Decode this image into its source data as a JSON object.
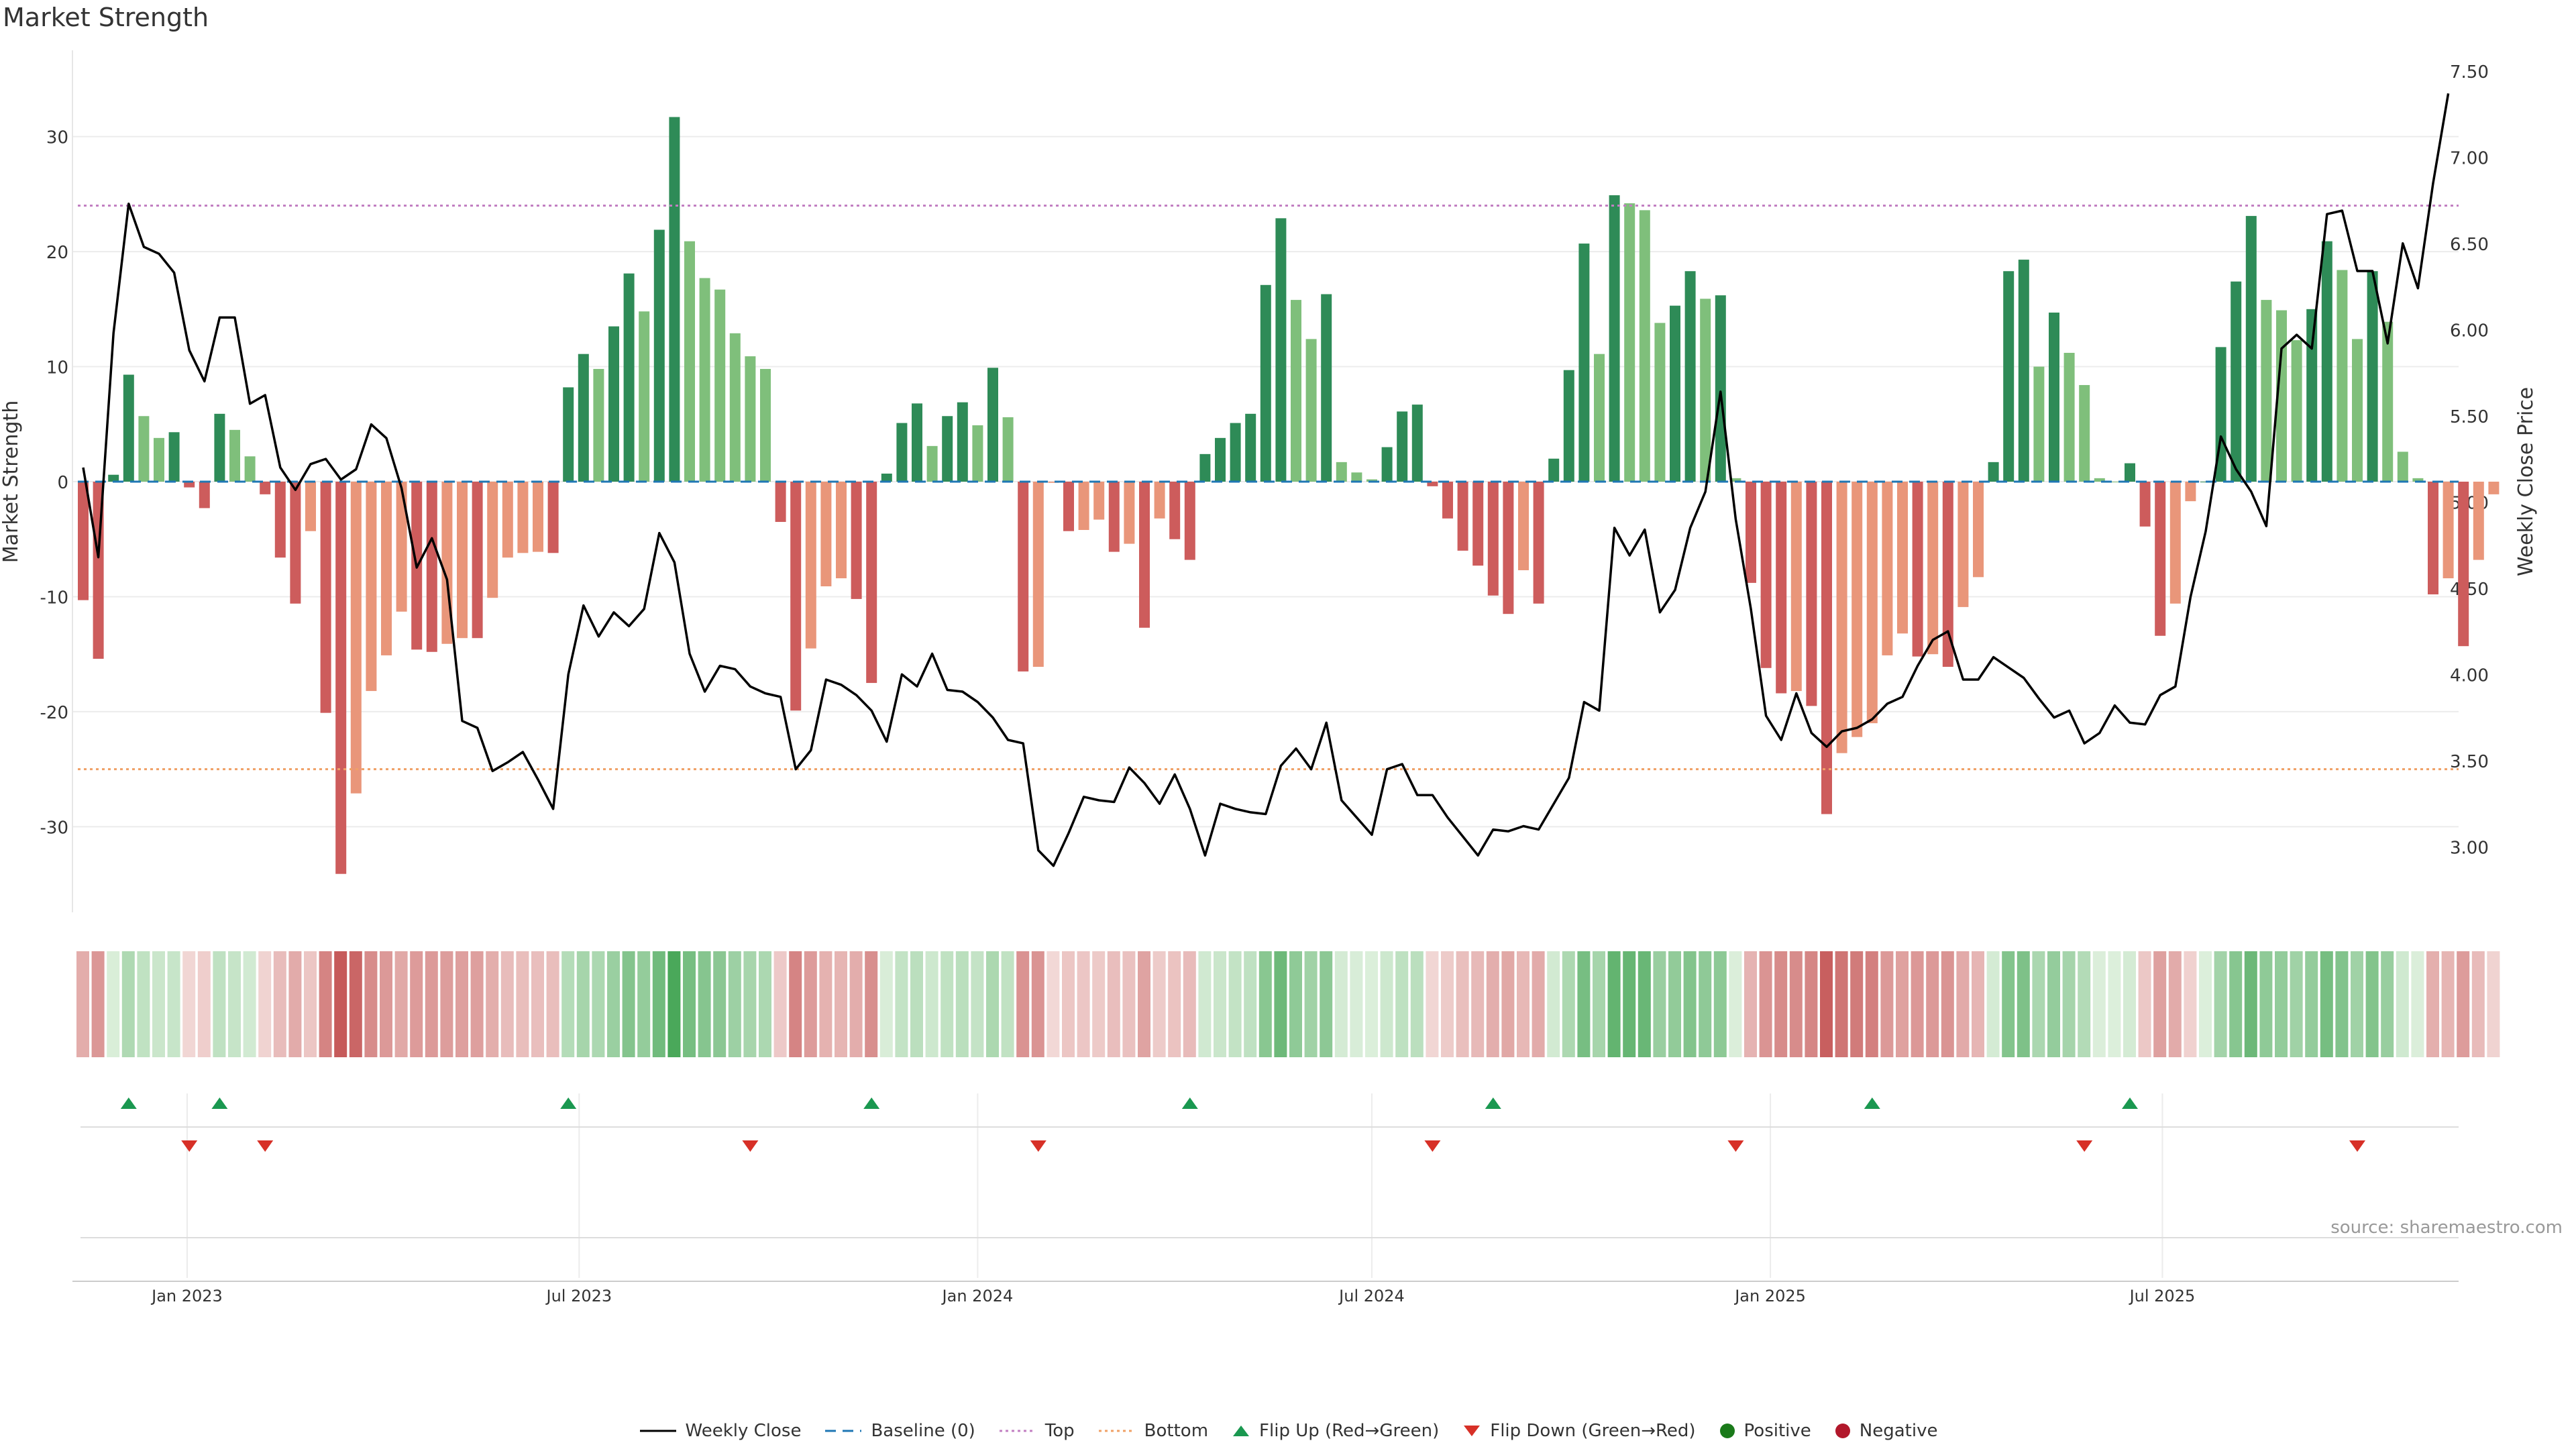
{
  "title": "Market Strength",
  "source": "source: sharemaestro.com",
  "colors": {
    "pos_dark": "#2e8b57",
    "pos_light": "#7fbf7b",
    "neg_dark": "#cd5c5c",
    "neg_light": "#e9967a",
    "price": "#000000",
    "baseline": "#1f77b4",
    "top": "#c27fc2",
    "bottom": "#f0a066",
    "flip_up": "#1a9850",
    "flip_down": "#d73027"
  },
  "legend": [
    {
      "key": "weekly_close",
      "label": "Weekly Close"
    },
    {
      "key": "baseline",
      "label": "Baseline (0)"
    },
    {
      "key": "top",
      "label": "Top"
    },
    {
      "key": "bottom",
      "label": "Bottom"
    },
    {
      "key": "flip_up",
      "label": "Flip Up (Red→Green)"
    },
    {
      "key": "flip_down",
      "label": "Flip Down (Green→Red)"
    },
    {
      "key": "positive",
      "label": "Positive"
    },
    {
      "key": "negative",
      "label": "Negative"
    }
  ],
  "chart_data": {
    "type": "bar",
    "title": "Market Strength",
    "ylabel": "Market Strength",
    "y2label": "Weekly Close Price",
    "ylim": [
      -36.5,
      37.5
    ],
    "y_ticks": [
      30,
      20,
      10,
      0,
      -10,
      -20,
      -30
    ],
    "y2lim": [
      2.62,
      7.62
    ],
    "y2_ticks": [
      "7.50",
      "7.00",
      "6.50",
      "6.00",
      "5.50",
      "5.00",
      "4.50",
      "4.00",
      "3.50",
      "3.00"
    ],
    "top_level": 24,
    "bottom_level": -25,
    "x_start": "2022-11-14",
    "x_ticks": [
      {
        "date": "2023-01-01",
        "label": "Jan 2023"
      },
      {
        "date": "2023-07-01",
        "label": "Jul 2023"
      },
      {
        "date": "2024-01-01",
        "label": "Jan 2024"
      },
      {
        "date": "2024-07-01",
        "label": "Jul 2024"
      },
      {
        "date": "2025-01-01",
        "label": "Jan 2025"
      },
      {
        "date": "2025-07-01",
        "label": "Jul 2025"
      }
    ],
    "strength": [
      -10.3,
      -15.4,
      0.6,
      9.3,
      5.7,
      3.8,
      4.3,
      -0.5,
      -2.3,
      5.9,
      4.5,
      2.2,
      -1.1,
      -6.6,
      -10.6,
      -4.3,
      -20.1,
      -34.1,
      -27.1,
      -18.2,
      -15.1,
      -11.3,
      -14.6,
      -14.8,
      -14.1,
      -13.6,
      -13.6,
      -10.1,
      -6.6,
      -6.2,
      -6.1,
      -6.2,
      8.2,
      11.1,
      9.8,
      13.5,
      18.1,
      14.8,
      21.9,
      31.7,
      20.9,
      17.7,
      16.7,
      12.9,
      10.9,
      9.8,
      -3.5,
      -19.9,
      -14.5,
      -9.1,
      -8.4,
      -10.2,
      -17.5,
      0.7,
      5.1,
      6.8,
      3.1,
      5.7,
      6.9,
      4.9,
      9.9,
      5.6,
      -16.5,
      -16.1,
      -0.1,
      -4.3,
      -4.2,
      -3.3,
      -6.1,
      -5.4,
      -12.7,
      -3.2,
      -5.0,
      -6.8,
      2.4,
      3.8,
      5.1,
      5.9,
      17.1,
      22.9,
      15.8,
      12.4,
      16.3,
      1.7,
      0.8,
      0.2,
      3.0,
      6.1,
      6.7,
      -0.4,
      -3.2,
      -6.0,
      -7.3,
      -9.9,
      -11.5,
      -7.7,
      -10.6,
      2.0,
      9.7,
      20.7,
      11.1,
      24.9,
      24.2,
      23.6,
      13.8,
      15.3,
      18.3,
      15.9,
      16.2,
      0.3,
      -8.8,
      -16.2,
      -18.4,
      -18.2,
      -19.5,
      -28.9,
      -23.6,
      -22.2,
      -21.0,
      -15.1,
      -13.2,
      -15.2,
      -15.0,
      -16.1,
      -10.9,
      -8.3,
      1.7,
      18.3,
      19.3,
      10.0,
      14.7,
      11.2,
      8.4,
      0.3,
      0.0,
      1.6,
      -3.9,
      -13.4,
      -10.6,
      -1.7,
      0.0,
      11.7,
      17.4,
      23.1,
      15.8,
      14.9,
      12.3,
      15.0,
      20.9,
      18.4,
      12.4,
      18.3,
      13.9,
      2.6,
      0.3,
      -9.8,
      -8.4,
      -14.3,
      -6.8,
      -1.1
    ],
    "close": [
      5.2,
      4.68,
      5.98,
      6.73,
      6.48,
      6.44,
      6.33,
      5.88,
      5.7,
      6.07,
      6.07,
      5.57,
      5.62,
      5.2,
      5.07,
      5.22,
      5.25,
      5.13,
      5.19,
      5.45,
      5.37,
      5.08,
      4.62,
      4.79,
      4.55,
      3.73,
      3.69,
      3.44,
      3.49,
      3.55,
      3.39,
      3.22,
      4.0,
      4.4,
      4.22,
      4.36,
      4.28,
      4.38,
      4.82,
      4.65,
      4.12,
      3.9,
      4.05,
      4.03,
      3.93,
      3.89,
      3.87,
      3.45,
      3.56,
      3.97,
      3.94,
      3.88,
      3.79,
      3.61,
      4.0,
      3.93,
      4.12,
      3.91,
      3.9,
      3.84,
      3.75,
      3.62,
      3.6,
      2.98,
      2.89,
      3.08,
      3.29,
      3.27,
      3.26,
      3.46,
      3.37,
      3.25,
      3.42,
      3.22,
      2.95,
      3.25,
      3.22,
      3.2,
      3.19,
      3.47,
      3.57,
      3.45,
      3.72,
      3.27,
      3.17,
      3.07,
      3.45,
      3.48,
      3.3,
      3.3,
      3.17,
      3.06,
      2.95,
      3.1,
      3.09,
      3.12,
      3.1,
      3.25,
      3.4,
      3.84,
      3.79,
      4.85,
      4.69,
      4.84,
      4.36,
      4.49,
      4.85,
      5.06,
      5.64,
      4.9,
      4.38,
      3.76,
      3.62,
      3.89,
      3.66,
      3.58,
      3.67,
      3.69,
      3.74,
      3.83,
      3.87,
      4.05,
      4.2,
      4.25,
      3.97,
      3.97,
      4.1,
      4.04,
      3.98,
      3.86,
      3.75,
      3.79,
      3.6,
      3.66,
      3.82,
      3.72,
      3.71,
      3.88,
      3.93,
      4.45,
      4.83,
      5.38,
      5.19,
      5.06,
      4.86,
      5.89,
      5.97,
      5.89,
      6.67,
      6.69,
      6.34,
      6.34,
      5.92,
      6.5,
      6.24,
      6.85,
      7.37
    ],
    "flip_up_dates": [
      "2022-12-05",
      "2023-01-16",
      "2023-06-26",
      "2023-11-13",
      "2024-04-08",
      "2024-08-26",
      "2025-02-17",
      "2025-06-16"
    ],
    "flip_down_dates": [
      "2023-01-02",
      "2023-02-06",
      "2023-09-18",
      "2024-01-29",
      "2024-07-29",
      "2024-12-16",
      "2025-05-26",
      "2025-09-29"
    ]
  }
}
